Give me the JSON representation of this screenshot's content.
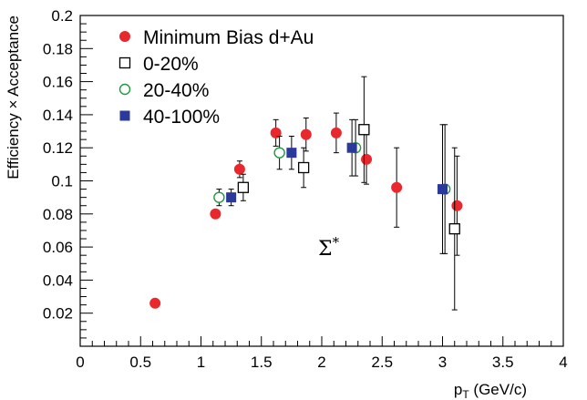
{
  "chart_data": {
    "type": "scatter",
    "xlabel": "p_T (GeV/c)",
    "xlabel_main": "p",
    "xlabel_sub": "T",
    "xlabel_rest": " (GeV/c)",
    "ylabel": "Efficiency × Acceptance",
    "xlim": [
      0,
      4
    ],
    "ylim": [
      0,
      0.2
    ],
    "x_ticks": [
      "0",
      "0.5",
      "1",
      "1.5",
      "2",
      "2.5",
      "3",
      "3.5",
      "4"
    ],
    "y_ticks": [
      "0.02",
      "0.04",
      "0.06",
      "0.08",
      "0.1",
      "0.12",
      "0.14",
      "0.16",
      "0.18",
      "0.2"
    ],
    "annotation": "Σ*",
    "annotation_main": "Σ",
    "annotation_sup": "*",
    "legend_position": "top-left",
    "grid": false,
    "series": [
      {
        "name": "Minimum Bias d+Au",
        "marker": "filled-circle",
        "color": "#e8282d",
        "points": [
          {
            "x": 0.62,
            "y": 0.026,
            "err": 0.0
          },
          {
            "x": 1.12,
            "y": 0.08,
            "err": 0.0
          },
          {
            "x": 1.32,
            "y": 0.107,
            "err": 0.005
          },
          {
            "x": 1.62,
            "y": 0.129,
            "err": 0.008
          },
          {
            "x": 1.87,
            "y": 0.128,
            "err": 0.01
          },
          {
            "x": 2.12,
            "y": 0.129,
            "err": 0.012
          },
          {
            "x": 2.37,
            "y": 0.113,
            "err": 0.015
          },
          {
            "x": 2.62,
            "y": 0.096,
            "err": 0.024
          },
          {
            "x": 3.12,
            "y": 0.085,
            "err": 0.03
          }
        ]
      },
      {
        "name": "0-20%",
        "marker": "open-square",
        "color": "#000000",
        "points": [
          {
            "x": 1.35,
            "y": 0.096,
            "err": 0.008
          },
          {
            "x": 1.85,
            "y": 0.108,
            "err": 0.012
          },
          {
            "x": 2.35,
            "y": 0.131,
            "err": 0.032
          },
          {
            "x": 3.1,
            "y": 0.071,
            "err": 0.049
          }
        ]
      },
      {
        "name": "20-40%",
        "marker": "open-circle",
        "color": "#1e9a3c",
        "points": [
          {
            "x": 1.15,
            "y": 0.09,
            "err": 0.005
          },
          {
            "x": 1.65,
            "y": 0.117,
            "err": 0.01
          },
          {
            "x": 2.28,
            "y": 0.12,
            "err": 0.017
          },
          {
            "x": 3.02,
            "y": 0.095,
            "err": 0.039
          }
        ]
      },
      {
        "name": "40-100%",
        "marker": "filled-square",
        "color": "#2b3a9a",
        "points": [
          {
            "x": 1.25,
            "y": 0.09,
            "err": 0.005
          },
          {
            "x": 1.75,
            "y": 0.117,
            "err": 0.01
          },
          {
            "x": 2.25,
            "y": 0.12,
            "err": 0.017
          },
          {
            "x": 3.0,
            "y": 0.095,
            "err": 0.039
          }
        ]
      }
    ]
  }
}
